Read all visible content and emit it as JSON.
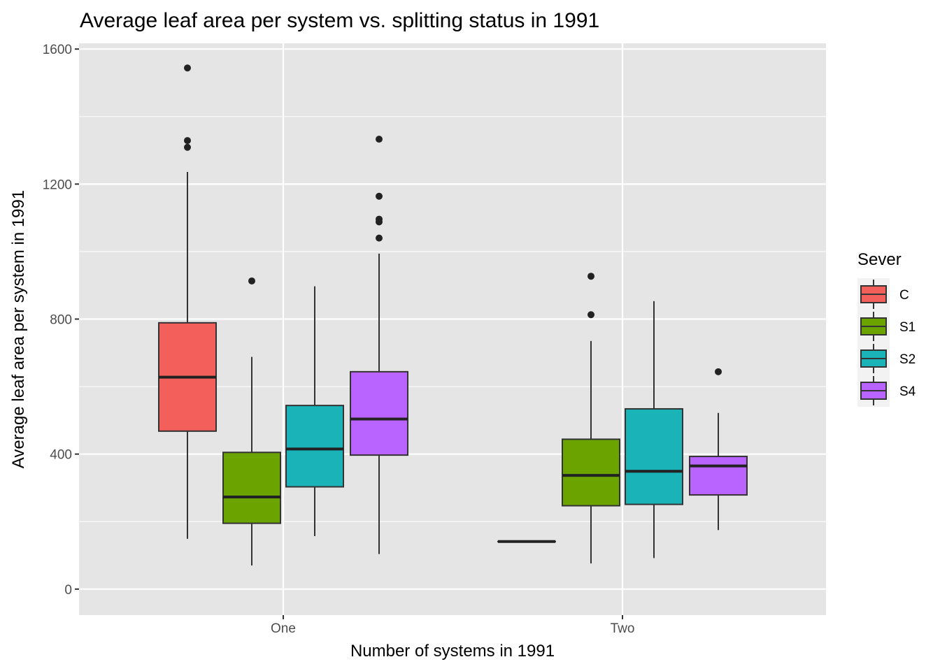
{
  "chart_data": {
    "type": "boxplot",
    "title": "Average leaf area per system vs. splitting status in 1991",
    "xlabel": "Number of systems in 1991",
    "ylabel": "Average leaf area per system in 1991",
    "categories": [
      "One",
      "Two"
    ],
    "ylim": [
      -77,
      1617
    ],
    "yticks": [
      0,
      400,
      800,
      1200,
      1600
    ],
    "grid": true,
    "legend": {
      "title": "Sever",
      "position": "right",
      "entries": [
        "C",
        "S1",
        "S2",
        "S4"
      ]
    },
    "colors": {
      "C": "#F35F5A",
      "S1": "#6BA300",
      "S2": "#19B3B8",
      "S4": "#B964FF"
    },
    "series": [
      {
        "name": "C",
        "boxes": [
          {
            "category": "One",
            "min": 149,
            "q1": 468,
            "median": 628,
            "q3": 789,
            "max": 1236,
            "outliers": [
              1544,
              1329,
              1309
            ]
          },
          {
            "category": "Two",
            "min": 141,
            "q1": 141,
            "median": 141,
            "q3": 141,
            "max": 141,
            "outliers": []
          }
        ]
      },
      {
        "name": "S1",
        "boxes": [
          {
            "category": "One",
            "min": 70,
            "q1": 195,
            "median": 273,
            "q3": 405,
            "max": 688,
            "outliers": [
              913
            ]
          },
          {
            "category": "Two",
            "min": 76,
            "q1": 247,
            "median": 337,
            "q3": 444,
            "max": 735,
            "outliers": [
              927,
              813
            ]
          }
        ]
      },
      {
        "name": "S2",
        "boxes": [
          {
            "category": "One",
            "min": 157,
            "q1": 303,
            "median": 415,
            "q3": 544,
            "max": 897,
            "outliers": []
          },
          {
            "category": "Two",
            "min": 92,
            "q1": 251,
            "median": 349,
            "q3": 534,
            "max": 853,
            "outliers": []
          }
        ]
      },
      {
        "name": "S4",
        "boxes": [
          {
            "category": "One",
            "min": 104,
            "q1": 397,
            "median": 504,
            "q3": 644,
            "max": 994,
            "outliers": [
              1333,
              1164,
              1096,
              1088,
              1040
            ]
          },
          {
            "category": "Two",
            "min": 175,
            "q1": 279,
            "median": 365,
            "q3": 393,
            "max": 522,
            "outliers": [
              644
            ]
          }
        ]
      }
    ]
  }
}
